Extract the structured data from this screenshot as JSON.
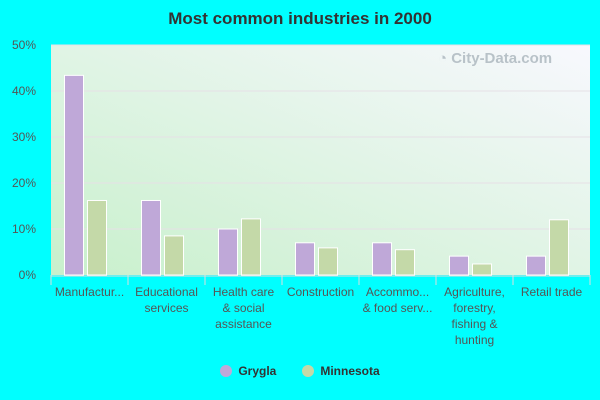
{
  "chart_data": {
    "type": "bar",
    "title": "Most common industries in 2000",
    "categories": [
      [
        "Manufactur..."
      ],
      [
        "Educational",
        "services"
      ],
      [
        "Health care",
        "& social",
        "assistance"
      ],
      [
        "Construction"
      ],
      [
        "Accommo...",
        "& food serv..."
      ],
      [
        "Agriculture,",
        "forestry,",
        "fishing &",
        "hunting"
      ],
      [
        "Retail trade"
      ]
    ],
    "series": [
      {
        "name": "Grygla",
        "color": "#bfa8d8",
        "values": [
          43.4,
          16.2,
          10.0,
          7.0,
          7.0,
          4.1,
          4.1
        ]
      },
      {
        "name": "Minnesota",
        "color": "#c4d9a8",
        "values": [
          16.2,
          8.5,
          12.2,
          5.9,
          5.5,
          2.4,
          12.0
        ]
      }
    ],
    "yticks": [
      "0%",
      "10%",
      "20%",
      "30%",
      "40%",
      "50%"
    ],
    "ylim": [
      0,
      50
    ],
    "grid": true,
    "legend": "bottom"
  },
  "watermark": "City-Data.com"
}
